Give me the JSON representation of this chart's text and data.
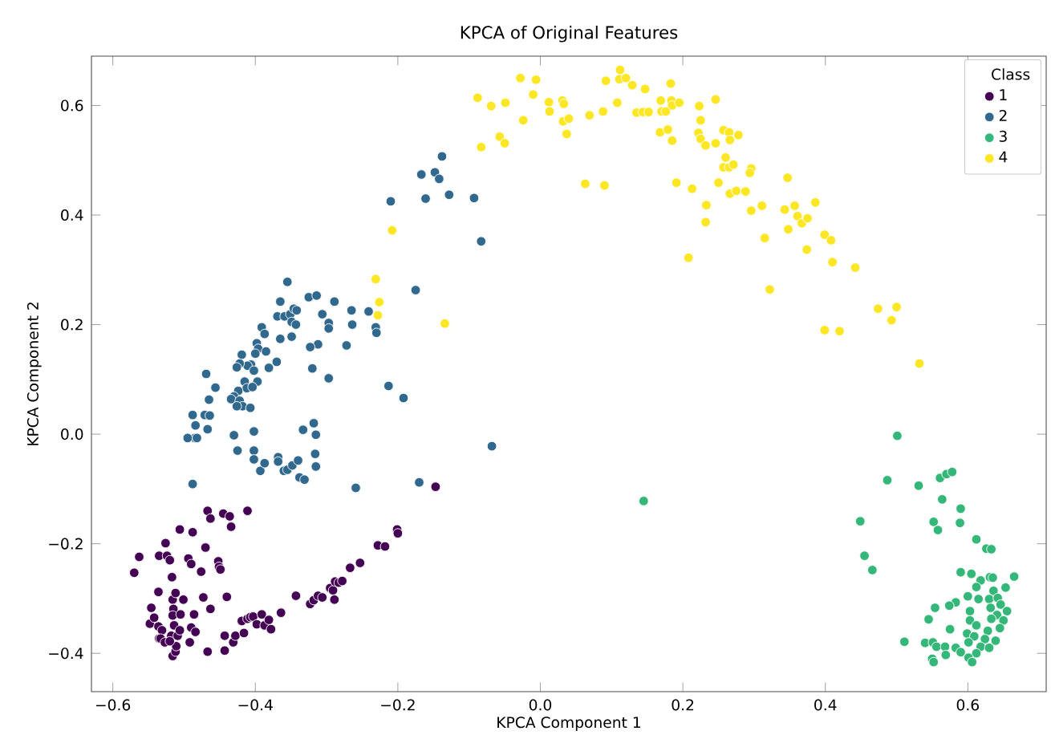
{
  "chart_data": {
    "type": "scatter",
    "title": "KPCA of Original Features",
    "xlabel": "KPCA Component 1",
    "ylabel": "KPCA Component 2",
    "legend_title": "Class",
    "legend": "top right",
    "xlim": [
      -0.63,
      0.71
    ],
    "ylim": [
      -0.47,
      0.69
    ],
    "xticks": [
      {
        "value": -0.6,
        "label": "−0.6"
      },
      {
        "value": -0.4,
        "label": "−0.4"
      },
      {
        "value": -0.2,
        "label": "−0.2"
      },
      {
        "value": 0,
        "label": "0.0"
      },
      {
        "value": 0.2,
        "label": "0.2"
      },
      {
        "value": 0.4,
        "label": "0.4"
      },
      {
        "value": 0.6,
        "label": "0.6"
      }
    ],
    "yticks": [
      {
        "value": -0.4,
        "label": "−0.4"
      },
      {
        "value": -0.2,
        "label": "−0.2"
      },
      {
        "value": 0,
        "label": "0.0"
      },
      {
        "value": 0.2,
        "label": "0.2"
      },
      {
        "value": 0.4,
        "label": "0.4"
      },
      {
        "value": 0.6,
        "label": "0.6"
      }
    ],
    "series": [
      {
        "name": "1",
        "color": "#440154",
        "x": [
          -0.57,
          -0.563,
          -0.548,
          -0.546,
          -0.542,
          -0.536,
          -0.535,
          -0.531,
          -0.526,
          -0.535,
          -0.524,
          -0.52,
          -0.517,
          -0.516,
          -0.512,
          -0.515,
          -0.516,
          -0.514,
          -0.518,
          -0.516,
          -0.512,
          -0.511,
          -0.509,
          -0.506,
          -0.501,
          -0.505,
          -0.536,
          -0.533,
          -0.527,
          -0.52,
          -0.506,
          -0.488,
          -0.494,
          -0.49,
          -0.476,
          -0.473,
          -0.486,
          -0.49,
          -0.484,
          -0.492,
          -0.467,
          -0.463,
          -0.47,
          -0.467,
          -0.463,
          -0.452,
          -0.451,
          -0.449,
          -0.445,
          -0.436,
          -0.434,
          -0.44,
          -0.443,
          -0.443,
          -0.431,
          -0.428,
          -0.419,
          -0.416,
          -0.411,
          -0.407,
          -0.403,
          -0.398,
          -0.391,
          -0.387,
          -0.378,
          -0.381,
          -0.411,
          -0.364,
          -0.343,
          -0.323,
          -0.318,
          -0.312,
          -0.306,
          -0.289,
          -0.295,
          -0.291,
          -0.288,
          -0.283,
          -0.278,
          -0.267,
          -0.253,
          -0.228,
          -0.218,
          -0.201,
          -0.2,
          -0.147
        ],
        "values": [
          -0.253,
          -0.224,
          -0.346,
          -0.317,
          -0.335,
          -0.351,
          -0.373,
          -0.358,
          -0.199,
          -0.222,
          -0.222,
          -0.23,
          -0.261,
          -0.302,
          -0.29,
          -0.319,
          -0.331,
          -0.349,
          -0.368,
          -0.405,
          -0.397,
          -0.387,
          -0.368,
          -0.358,
          -0.302,
          -0.329,
          -0.288,
          -0.373,
          -0.38,
          -0.378,
          -0.174,
          -0.179,
          -0.227,
          -0.237,
          -0.251,
          -0.298,
          -0.329,
          -0.353,
          -0.361,
          -0.38,
          -0.397,
          -0.319,
          -0.207,
          -0.14,
          -0.154,
          -0.232,
          -0.242,
          -0.247,
          -0.145,
          -0.15,
          -0.169,
          -0.297,
          -0.368,
          -0.395,
          -0.38,
          -0.368,
          -0.341,
          -0.363,
          -0.337,
          -0.334,
          -0.333,
          -0.347,
          -0.329,
          -0.349,
          -0.356,
          -0.339,
          -0.14,
          -0.326,
          -0.295,
          -0.31,
          -0.303,
          -0.295,
          -0.298,
          -0.302,
          -0.281,
          -0.285,
          -0.269,
          -0.271,
          -0.268,
          -0.244,
          -0.235,
          -0.203,
          -0.205,
          -0.174,
          -0.181,
          -0.096
        ]
      },
      {
        "name": "2",
        "color": "#31688e",
        "x": [
          -0.138,
          -0.167,
          -0.148,
          -0.142,
          -0.21,
          -0.161,
          -0.128,
          -0.093,
          -0.083,
          -0.068,
          -0.355,
          -0.365,
          -0.325,
          -0.314,
          -0.289,
          -0.265,
          -0.241,
          -0.175,
          -0.369,
          -0.359,
          -0.351,
          -0.346,
          -0.342,
          -0.306,
          -0.297,
          -0.297,
          -0.264,
          -0.231,
          -0.23,
          -0.349,
          -0.343,
          -0.391,
          -0.387,
          -0.365,
          -0.349,
          -0.312,
          -0.323,
          -0.272,
          -0.398,
          -0.396,
          -0.385,
          -0.4,
          -0.406,
          -0.419,
          -0.411,
          -0.381,
          -0.37,
          -0.422,
          -0.426,
          -0.402,
          -0.397,
          -0.32,
          -0.297,
          -0.213,
          -0.192,
          -0.469,
          -0.456,
          -0.465,
          -0.415,
          -0.412,
          -0.424,
          -0.404,
          -0.43,
          -0.434,
          -0.422,
          -0.418,
          -0.426,
          -0.407,
          -0.488,
          -0.484,
          -0.471,
          -0.464,
          -0.467,
          -0.485,
          -0.495,
          -0.482,
          -0.43,
          -0.402,
          -0.333,
          -0.318,
          -0.315,
          -0.425,
          -0.402,
          -0.402,
          -0.393,
          -0.387,
          -0.368,
          -0.368,
          -0.36,
          -0.355,
          -0.348,
          -0.34,
          -0.338,
          -0.331,
          -0.316,
          -0.315,
          -0.259,
          -0.488,
          -0.17
        ],
        "values": [
          0.507,
          0.474,
          0.478,
          0.466,
          0.425,
          0.43,
          0.437,
          0.431,
          0.352,
          -0.022,
          0.278,
          0.242,
          0.25,
          0.253,
          0.242,
          0.226,
          0.224,
          0.263,
          0.215,
          0.215,
          0.219,
          0.229,
          0.226,
          0.219,
          0.203,
          0.193,
          0.2,
          0.195,
          0.185,
          0.205,
          0.2,
          0.195,
          0.183,
          0.174,
          0.178,
          0.164,
          0.159,
          0.162,
          0.166,
          0.156,
          0.151,
          0.147,
          0.127,
          0.145,
          0.125,
          0.121,
          0.132,
          0.129,
          0.122,
          0.116,
          0.096,
          0.12,
          0.102,
          0.088,
          0.066,
          0.11,
          0.085,
          0.063,
          0.096,
          0.084,
          0.079,
          0.086,
          0.069,
          0.064,
          0.061,
          0.051,
          0.051,
          0.048,
          0.035,
          0.016,
          0.035,
          0.034,
          0.009,
          -0.007,
          -0.007,
          -0.007,
          -0.002,
          0.005,
          0.008,
          0.02,
          -0.001,
          -0.03,
          -0.03,
          -0.046,
          -0.067,
          -0.053,
          -0.042,
          -0.05,
          -0.067,
          -0.065,
          -0.057,
          -0.048,
          -0.079,
          -0.083,
          -0.036,
          -0.059,
          -0.098,
          -0.091,
          -0.088
        ]
      },
      {
        "name": "3",
        "color": "#35b779",
        "x": [
          0.501,
          0.145,
          0.487,
          0.531,
          0.561,
          0.57,
          0.578,
          0.564,
          0.59,
          0.552,
          0.558,
          0.589,
          0.449,
          0.455,
          0.466,
          0.612,
          0.626,
          0.633,
          0.59,
          0.605,
          0.618,
          0.631,
          0.635,
          0.665,
          0.612,
          0.653,
          0.636,
          0.6,
          0.615,
          0.63,
          0.642,
          0.583,
          0.574,
          0.554,
          0.603,
          0.632,
          0.646,
          0.655,
          0.641,
          0.633,
          0.65,
          0.545,
          0.603,
          0.612,
          0.645,
          0.628,
          0.599,
          0.575,
          0.609,
          0.624,
          0.639,
          0.511,
          0.54,
          0.551,
          0.556,
          0.568,
          0.583,
          0.601,
          0.618,
          0.63,
          0.59,
          0.612,
          0.569,
          0.55,
          0.552,
          0.601,
          0.606
        ],
        "values": [
          -0.003,
          -0.122,
          -0.084,
          -0.094,
          -0.08,
          -0.073,
          -0.069,
          -0.119,
          -0.136,
          -0.16,
          -0.175,
          -0.162,
          -0.159,
          -0.222,
          -0.248,
          -0.192,
          -0.209,
          -0.21,
          -0.252,
          -0.255,
          -0.267,
          -0.261,
          -0.262,
          -0.26,
          -0.279,
          -0.28,
          -0.286,
          -0.296,
          -0.301,
          -0.301,
          -0.299,
          -0.307,
          -0.313,
          -0.317,
          -0.323,
          -0.317,
          -0.311,
          -0.323,
          -0.33,
          -0.337,
          -0.34,
          -0.338,
          -0.34,
          -0.349,
          -0.354,
          -0.359,
          -0.364,
          -0.356,
          -0.369,
          -0.374,
          -0.377,
          -0.379,
          -0.381,
          -0.38,
          -0.388,
          -0.388,
          -0.39,
          -0.38,
          -0.388,
          -0.39,
          -0.398,
          -0.4,
          -0.403,
          -0.41,
          -0.416,
          -0.408,
          -0.416
        ]
      },
      {
        "name": "4",
        "color": "#fde725",
        "x": [
          -0.231,
          -0.226,
          -0.228,
          -0.134,
          -0.208,
          -0.088,
          -0.069,
          -0.049,
          -0.028,
          -0.006,
          -0.01,
          -0.024,
          -0.057,
          -0.05,
          -0.083,
          0.012,
          0.013,
          0.031,
          0.033,
          0.032,
          0.04,
          0.037,
          0.069,
          0.088,
          0.092,
          0.108,
          0.112,
          0.111,
          0.12,
          0.129,
          0.147,
          0.135,
          0.144,
          0.152,
          0.169,
          0.183,
          0.184,
          0.185,
          0.195,
          0.17,
          0.176,
          0.168,
          0.179,
          0.185,
          0.223,
          0.246,
          0.225,
          0.222,
          0.225,
          0.232,
          0.246,
          0.257,
          0.265,
          0.278,
          0.266,
          0.26,
          0.257,
          0.265,
          0.271,
          0.296,
          0.294,
          0.25,
          0.213,
          0.191,
          0.063,
          0.09,
          0.266,
          0.275,
          0.288,
          0.296,
          0.311,
          0.233,
          0.232,
          0.208,
          0.315,
          0.347,
          0.343,
          0.357,
          0.361,
          0.367,
          0.375,
          0.386,
          0.348,
          0.374,
          0.399,
          0.408,
          0.41,
          0.442,
          0.322,
          0.474,
          0.5,
          0.493,
          0.399,
          0.42,
          0.532
        ],
        "values": [
          0.283,
          0.241,
          0.217,
          0.202,
          0.372,
          0.614,
          0.599,
          0.605,
          0.65,
          0.647,
          0.62,
          0.573,
          0.543,
          0.531,
          0.524,
          0.606,
          0.589,
          0.609,
          0.603,
          0.571,
          0.576,
          0.548,
          0.582,
          0.589,
          0.645,
          0.605,
          0.665,
          0.648,
          0.65,
          0.637,
          0.63,
          0.587,
          0.588,
          0.588,
          0.609,
          0.64,
          0.609,
          0.6,
          0.605,
          0.589,
          0.589,
          0.551,
          0.556,
          0.536,
          0.599,
          0.611,
          0.573,
          0.55,
          0.539,
          0.527,
          0.531,
          0.555,
          0.551,
          0.546,
          0.537,
          0.505,
          0.487,
          0.487,
          0.492,
          0.485,
          0.477,
          0.459,
          0.448,
          0.459,
          0.457,
          0.454,
          0.439,
          0.444,
          0.443,
          0.408,
          0.417,
          0.418,
          0.387,
          0.322,
          0.358,
          0.468,
          0.41,
          0.417,
          0.398,
          0.385,
          0.394,
          0.423,
          0.374,
          0.337,
          0.364,
          0.354,
          0.314,
          0.304,
          0.264,
          0.229,
          0.232,
          0.208,
          0.19,
          0.188,
          0.129
        ]
      }
    ]
  }
}
